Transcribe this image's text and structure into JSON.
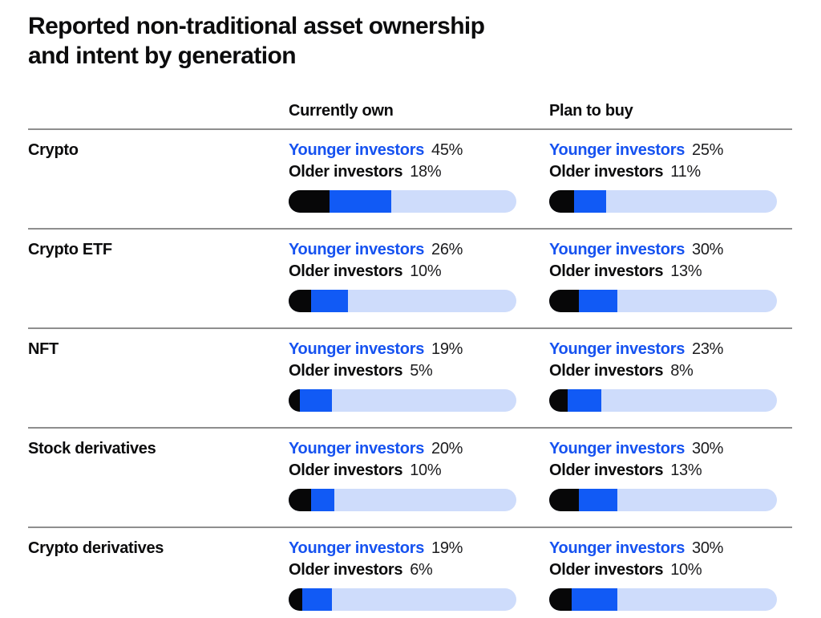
{
  "title": {
    "line1": "Reported non-traditional asset ownership",
    "line2": "and intent by generation"
  },
  "columns": {
    "own": "Currently own",
    "buy": "Plan to buy"
  },
  "legend": {
    "younger": "Younger investors",
    "older": "Older investors"
  },
  "colors": {
    "accent_blue_text": "#1652f0",
    "bar_blue": "#115af5",
    "bar_track": "#cedcfb",
    "bar_black": "#070708",
    "divider_gray": "#8e8e8e",
    "text_black": "#0c0c0d"
  },
  "rows": [
    {
      "label": "Crypto",
      "cells": [
        {
          "younger_text": "45%",
          "older_text": "18%",
          "younger_pct": 45,
          "older_pct": 18
        },
        {
          "younger_text": "25%",
          "older_text": "11%",
          "younger_pct": 25,
          "older_pct": 11
        }
      ]
    },
    {
      "label": "Crypto ETF",
      "cells": [
        {
          "younger_text": "26%",
          "older_text": "10%",
          "younger_pct": 26,
          "older_pct": 10
        },
        {
          "younger_text": "30%",
          "older_text": "13%",
          "younger_pct": 30,
          "older_pct": 13
        }
      ]
    },
    {
      "label": "NFT",
      "cells": [
        {
          "younger_text": "19%",
          "older_text": "5%",
          "younger_pct": 19,
          "older_pct": 5
        },
        {
          "younger_text": "23%",
          "older_text": "8%",
          "younger_pct": 23,
          "older_pct": 8
        }
      ]
    },
    {
      "label": "Stock derivatives",
      "cells": [
        {
          "younger_text": "20%",
          "older_text": "10%",
          "younger_pct": 20,
          "older_pct": 10
        },
        {
          "younger_text": "30%",
          "older_text": "13%",
          "younger_pct": 30,
          "older_pct": 13
        }
      ]
    },
    {
      "label": "Crypto derivatives",
      "cells": [
        {
          "younger_text": "19%",
          "older_text": "6%",
          "younger_pct": 19,
          "older_pct": 6
        },
        {
          "younger_text": "30%",
          "older_text": "10%",
          "younger_pct": 30,
          "older_pct": 10
        }
      ]
    }
  ],
  "chart_data": {
    "type": "bar",
    "title": "Reported non-traditional asset ownership and intent by generation",
    "categories": [
      "Crypto",
      "Crypto ETF",
      "NFT",
      "Stock derivatives",
      "Crypto derivatives"
    ],
    "groups": [
      "Currently own",
      "Plan to buy"
    ],
    "series": [
      {
        "name": "Younger investors",
        "group": "Currently own",
        "values": [
          45,
          26,
          19,
          20,
          19
        ]
      },
      {
        "name": "Older investors",
        "group": "Currently own",
        "values": [
          18,
          10,
          5,
          10,
          6
        ]
      },
      {
        "name": "Younger investors",
        "group": "Plan to buy",
        "values": [
          25,
          30,
          23,
          30,
          30
        ]
      },
      {
        "name": "Older investors",
        "group": "Plan to buy",
        "values": [
          11,
          13,
          8,
          13,
          10
        ]
      }
    ],
    "unit": "%",
    "xlim": [
      0,
      100
    ],
    "grid": false,
    "legend_position": "inline-per-cell",
    "bar_style": "pill, black segment = older %, blue segment extends to younger %, light blue = remainder to 100%"
  }
}
